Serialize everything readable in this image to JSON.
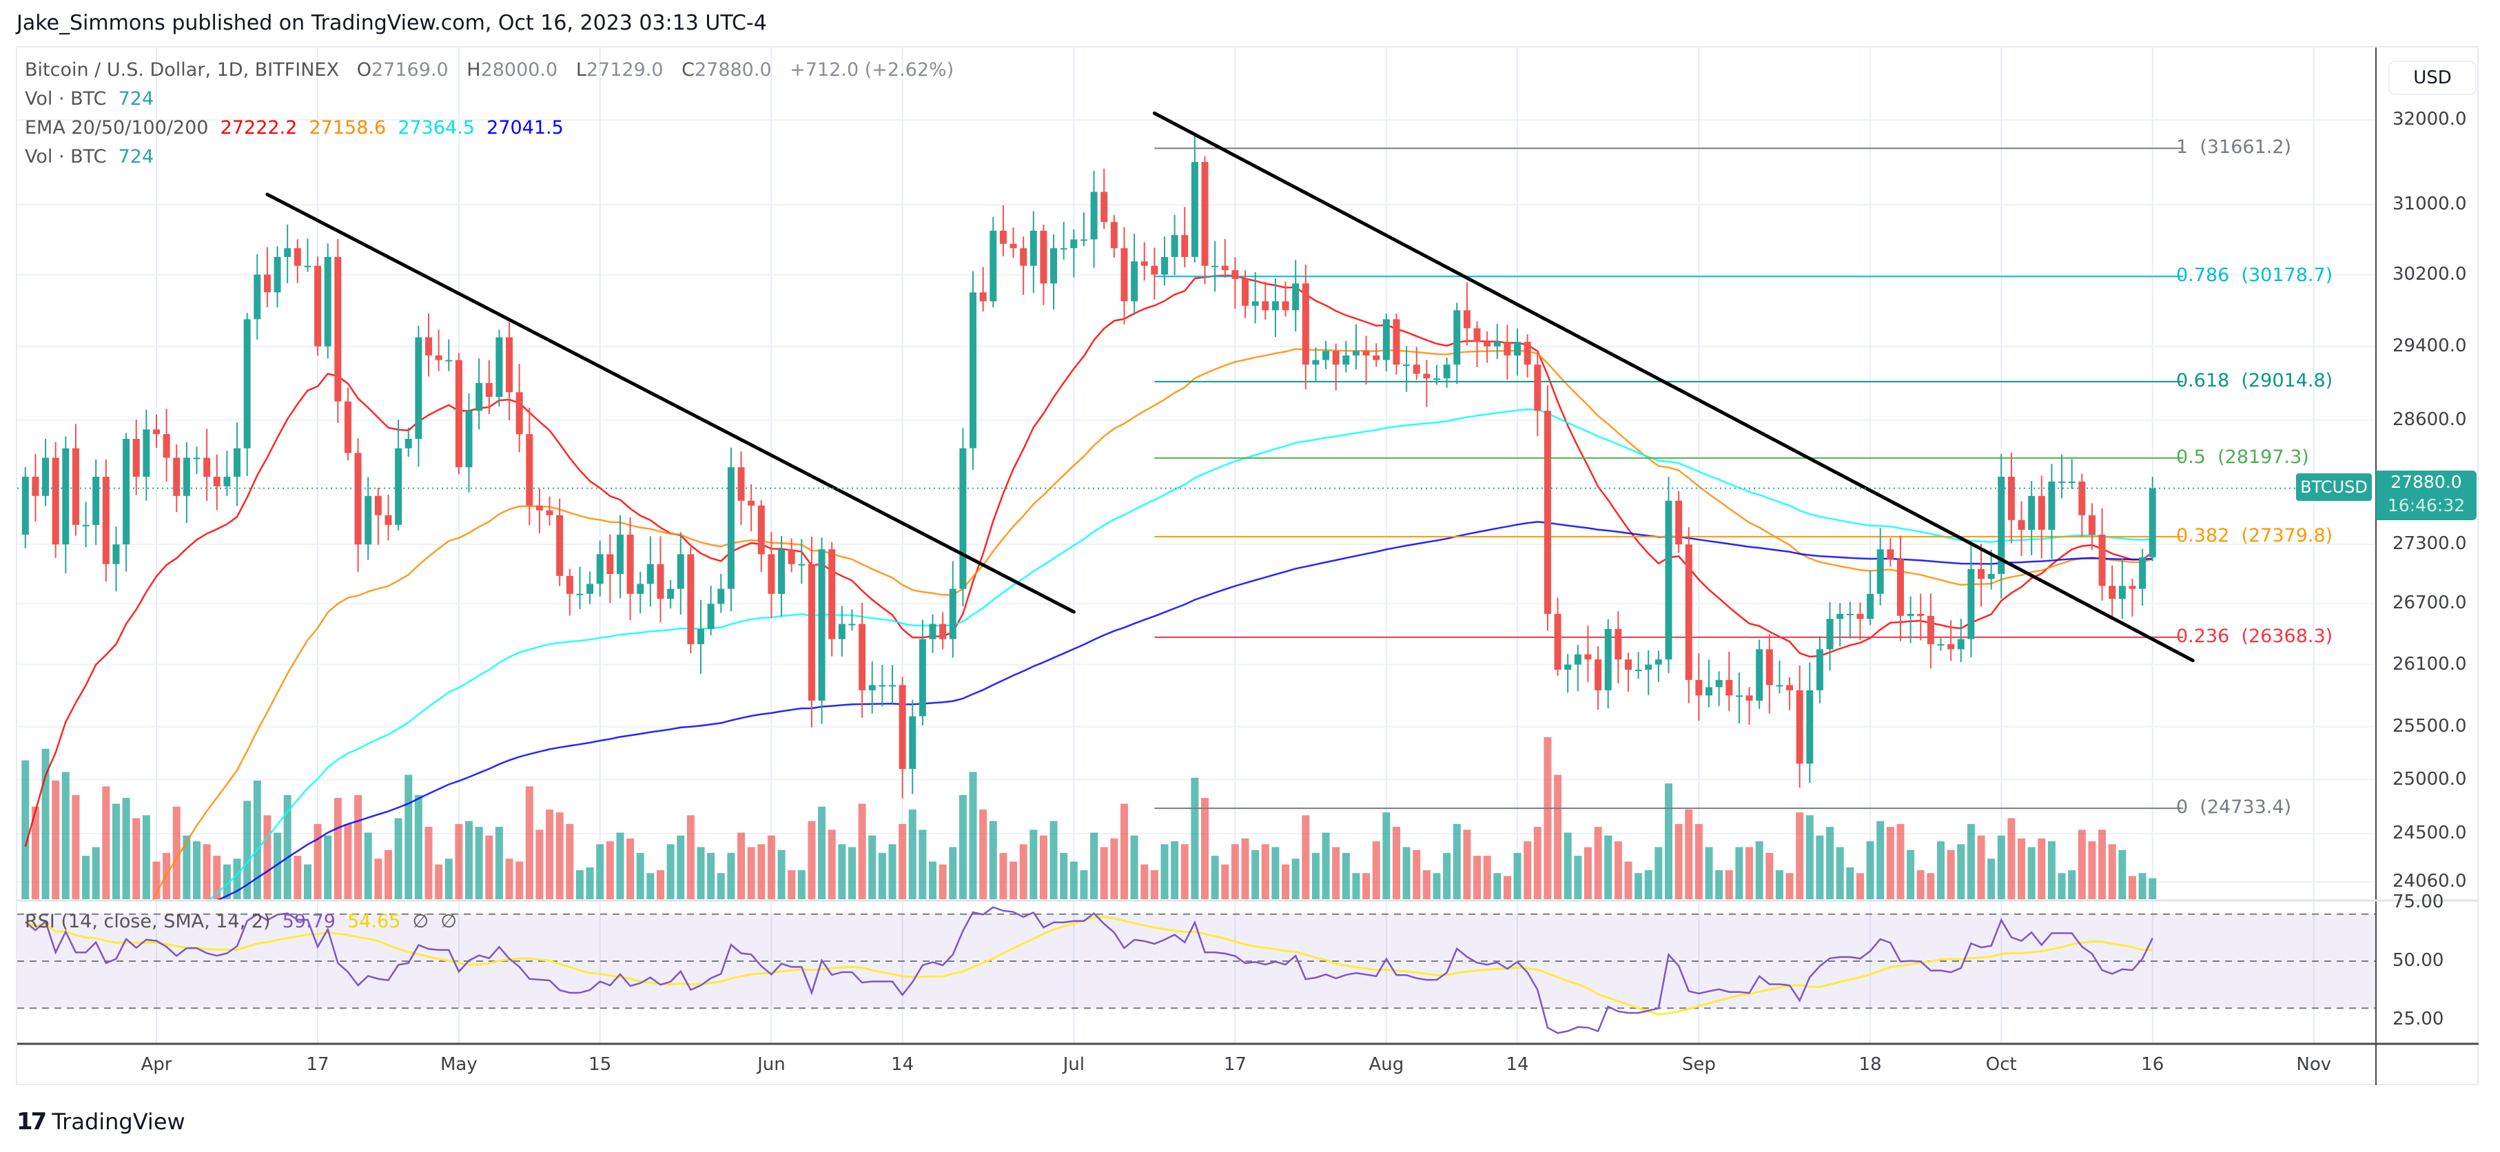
{
  "header": {
    "published": "Jake_Simmons published on TradingView.com, Oct 16, 2023 03:13 UTC-4"
  },
  "legend": {
    "symbol": "Bitcoin / U.S. Dollar, 1D, BITFINEX",
    "o_label": "O",
    "o": "27169.0",
    "h_label": "H",
    "h": "28000.0",
    "l_label": "L",
    "l": "27129.0",
    "c_label": "C",
    "c": "27880.0",
    "change": "+712.0 (+2.62%)",
    "vol_label": "Vol · BTC",
    "vol": "724",
    "ema_label": "EMA 20/50/100/200",
    "ema20": "27222.2",
    "ema50": "27158.6",
    "ema100": "27364.5",
    "ema200": "27041.5",
    "vol2_label": "Vol · BTC",
    "vol2": "724"
  },
  "rsi": {
    "label": "RSI (14, close, SMA, 14, 2)",
    "value": "59.79",
    "sma": "54.65",
    "na1": "∅",
    "na2": "∅",
    "ticks": [
      "75.00",
      "50.00",
      "25.00"
    ],
    "bands": [
      70,
      50,
      30
    ]
  },
  "axis": {
    "currency": "USD",
    "price_ticks": [
      "32000.0",
      "31000.0",
      "30200.0",
      "29400.0",
      "28600.0",
      "27300.0",
      "26700.0",
      "26100.0",
      "25500.0",
      "25000.0",
      "24500.0",
      "24060.0"
    ],
    "last_price": {
      "symbol": "BTCUSD",
      "price": "27880.0",
      "countdown": "16:46:32"
    }
  },
  "time_axis": [
    {
      "label": "Apr",
      "day": 13
    },
    {
      "label": "17",
      "day": 29
    },
    {
      "label": "May",
      "day": 43
    },
    {
      "label": "15",
      "day": 57
    },
    {
      "label": "Jun",
      "day": 74
    },
    {
      "label": "14",
      "day": 87
    },
    {
      "label": "Jul",
      "day": 104
    },
    {
      "label": "17",
      "day": 120
    },
    {
      "label": "Aug",
      "day": 135
    },
    {
      "label": "14",
      "day": 148
    },
    {
      "label": "Sep",
      "day": 166
    },
    {
      "label": "18",
      "day": 183
    },
    {
      "label": "Oct",
      "day": 196
    },
    {
      "label": "16",
      "day": 211
    },
    {
      "label": "Nov",
      "day": 227
    }
  ],
  "fib": {
    "from_day": 112,
    "to_day": 212,
    "levels": [
      {
        "level": "1",
        "price": "31661.2",
        "color": "#787b86"
      },
      {
        "level": "0.786",
        "price": "30178.7",
        "color": "#00bcd4"
      },
      {
        "level": "0.618",
        "price": "29014.8",
        "color": "#089981"
      },
      {
        "level": "0.5",
        "price": "28197.3",
        "color": "#4caf50"
      },
      {
        "level": "0.382",
        "price": "27379.8",
        "color": "#ff9800"
      },
      {
        "level": "0.236",
        "price": "26368.3",
        "color": "#f23645"
      },
      {
        "level": "0",
        "price": "24733.4",
        "color": "#787b86"
      }
    ]
  },
  "trendlines": [
    {
      "from": [
        24,
        31120
      ],
      "to": [
        104,
        26620
      ]
    },
    {
      "from": [
        112,
        32080
      ],
      "to": [
        215,
        26140
      ]
    }
  ],
  "colors": {
    "up": "#26a69a",
    "down": "#ef5350",
    "ema20": "#ff0000",
    "ema50": "#ff8c00",
    "ema100": "#00ffff",
    "ema200": "#0000ff",
    "rsi": "#7e57c2",
    "rsi_sma": "#ffeb3b"
  },
  "chart_data": {
    "type": "candlestick",
    "scale": "log",
    "ylim": [
      24060,
      32000
    ],
    "first_open": 27400,
    "last_candle": {
      "o": 27169.0,
      "h": 28000.0,
      "l": 27129.0,
      "c": 27880.0
    },
    "closes": {
      "Mar": [
        28000,
        27800,
        28200,
        27300,
        28300,
        27500,
        27500,
        28000,
        27100,
        27300,
        28400,
        28000,
        28500
      ],
      "Apr": [
        28450,
        28200,
        27800,
        28200,
        28200,
        28000,
        27900,
        28000,
        28300,
        29700,
        30200,
        30000,
        30400,
        30500,
        30300,
        30300,
        29400,
        30400,
        28800,
        28250,
        27300,
        27800,
        27600,
        27500,
        28300,
        28400,
        29500,
        29300,
        29250,
        29250
      ],
      "May": [
        28100,
        28700,
        29000,
        28850,
        29500,
        28900,
        28450,
        27700,
        27650,
        27600,
        26980,
        26800,
        26800,
        26900,
        27200,
        27000,
        27400,
        26800,
        26900,
        27100,
        26750,
        26850,
        27200,
        26300,
        26450,
        26700,
        26850,
        28100,
        27750,
        27700,
        27200
      ],
      "Jun": [
        26800,
        27250,
        27100,
        27100,
        25750,
        27250,
        26350,
        26500,
        26500,
        25850,
        25900,
        25900,
        25900,
        25100,
        25600,
        26350,
        26500,
        26350,
        26850,
        28300,
        30000,
        29900,
        30700,
        30550,
        30500,
        30300,
        30700,
        30100,
        30500,
        30500
      ],
      "Jul": [
        30600,
        30600,
        31150,
        30800,
        30500,
        29900,
        30350,
        30300,
        30200,
        30400,
        30650,
        30400,
        31500,
        30300,
        30300,
        30250,
        30150,
        29850,
        29900,
        29800,
        29900,
        29800,
        30100,
        29200,
        29250,
        29350,
        29200,
        29300,
        29350,
        29300,
        29250
      ],
      "Aug": [
        29700,
        29200,
        29200,
        29100,
        29050,
        29050,
        29200,
        29800,
        29600,
        29450,
        29400,
        29450,
        29300,
        29450,
        29200,
        28700,
        26600,
        26050,
        26100,
        26200,
        26150,
        25850,
        26450,
        26150,
        26050,
        26050,
        26100,
        26150,
        27750,
        27300,
        25950
      ],
      "Sep": [
        25800,
        25880,
        25950,
        25800,
        25800,
        25750,
        26250,
        25900,
        25900,
        25850,
        25150,
        25850,
        26250,
        26550,
        26600,
        26600,
        26550,
        26800,
        27250,
        27150,
        26580,
        26600,
        26580,
        26300,
        26300,
        26250,
        26350,
        27050,
        26950,
        27000
      ],
      "Oct": [
        28000,
        27550,
        27450,
        27800,
        27450,
        27950,
        27950,
        27950,
        27600,
        27400,
        26880,
        26750,
        26880,
        26850,
        27169,
        27880
      ]
    },
    "volumes": {
      "Mar": [
        4800,
        3200,
        5200,
        4100,
        4400,
        3600,
        1500,
        1800,
        3900,
        3300,
        3500,
        2800,
        2900
      ],
      "Apr": [
        1300,
        1600,
        3200,
        2200,
        2000,
        1900,
        1500,
        1200,
        1400,
        3400,
        4100,
        2900,
        2300,
        3600,
        1500,
        1200,
        2600,
        2200,
        3500,
        2600,
        3600,
        2300,
        1400,
        1700,
        2800,
        4300,
        3600,
        2500,
        1200,
        1400
      ],
      "May": [
        2600,
        2700,
        2500,
        2200,
        2500,
        1400,
        1300,
        3900,
        2400,
        3100,
        3000,
        2600,
        1000,
        1100,
        1900,
        2000,
        2300,
        2100,
        1600,
        900,
        1000,
        1900,
        2200,
        2900,
        1800,
        1600,
        900,
        1600,
        2300,
        1800,
        1900
      ],
      "Jun": [
        2200,
        1700,
        1000,
        1000,
        2700,
        3200,
        2400,
        1900,
        1800,
        3300,
        2200,
        1600,
        1900,
        2600,
        3100,
        2400,
        1300,
        1200,
        1800,
        3600,
        4400,
        3100,
        2700,
        1600,
        1300,
        1900,
        2400,
        2200,
        2700,
        1600
      ],
      "Jul": [
        1300,
        1000,
        2300,
        1800,
        2100,
        3300,
        2200,
        1200,
        1000,
        1900,
        2000,
        1900,
        4200,
        3500,
        1500,
        1200,
        1900,
        2100,
        1700,
        1900,
        1800,
        1200,
        1400,
        2900,
        1600,
        2300,
        1800,
        1600,
        900,
        900,
        2000
      ],
      "Aug": [
        3000,
        2500,
        1800,
        1700,
        1000,
        900,
        1600,
        2600,
        2400,
        1500,
        1500,
        900,
        800,
        1600,
        2000,
        2500,
        5600,
        4300,
        2300,
        1500,
        1800,
        2500,
        2200,
        2000,
        1300,
        900,
        1000,
        1800,
        4000,
        2600,
        3100
      ],
      "Sep": [
        2600,
        1800,
        1000,
        1000,
        1800,
        1800,
        2000,
        1600,
        1000,
        900,
        3000,
        2900,
        2200,
        2500,
        1800,
        1100,
        900,
        2000,
        2700,
        2500,
        2600,
        1700,
        1000,
        900,
        2000,
        1700,
        1900,
        2600,
        2200,
        1400
      ],
      "Oct": [
        2200,
        2800,
        2100,
        1800,
        2100,
        2000,
        900,
        1000,
        2400,
        2000,
        2400,
        1900,
        1700,
        800,
        900,
        724
      ]
    }
  },
  "footer": {
    "brand": "TradingView",
    "logo_glyph": "17"
  }
}
